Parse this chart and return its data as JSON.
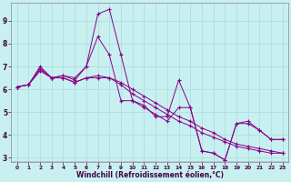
{
  "xlabel": "Windchill (Refroidissement éolien,°C)",
  "bg_color": "#c8f0f0",
  "line_color": "#880088",
  "xlim": [
    -0.5,
    23.5
  ],
  "ylim": [
    2.8,
    9.8
  ],
  "yticks": [
    3,
    4,
    5,
    6,
    7,
    8,
    9
  ],
  "xticks": [
    0,
    1,
    2,
    3,
    4,
    5,
    6,
    7,
    8,
    9,
    10,
    11,
    12,
    13,
    14,
    15,
    16,
    17,
    18,
    19,
    20,
    21,
    22,
    23
  ],
  "grid_color": "#b0dede",
  "series": [
    {
      "x": [
        0,
        1,
        2,
        3,
        4,
        5,
        6,
        7,
        8,
        9,
        10,
        11,
        12,
        13,
        14,
        15,
        16,
        17,
        18,
        19,
        20,
        21,
        22,
        23
      ],
      "y": [
        6.1,
        6.2,
        6.9,
        6.5,
        6.6,
        6.5,
        7.0,
        9.3,
        9.5,
        7.5,
        5.5,
        5.3,
        4.8,
        4.8,
        6.4,
        5.2,
        3.3,
        3.2,
        2.9,
        4.5,
        4.6,
        4.2,
        3.8,
        3.8
      ]
    },
    {
      "x": [
        0,
        1,
        2,
        3,
        4,
        5,
        6,
        7,
        8,
        9,
        10,
        11,
        12,
        13,
        14,
        15,
        16,
        17,
        18,
        19,
        20,
        21,
        22,
        23
      ],
      "y": [
        6.1,
        6.2,
        7.0,
        6.5,
        6.6,
        6.4,
        7.0,
        8.3,
        7.5,
        5.5,
        5.5,
        5.2,
        4.9,
        4.6,
        5.2,
        5.2,
        3.3,
        3.2,
        2.9,
        4.5,
        4.5,
        4.2,
        3.8,
        3.8
      ]
    },
    {
      "x": [
        0,
        1,
        2,
        3,
        4,
        5,
        6,
        7,
        8,
        9,
        10,
        11,
        12,
        13,
        14,
        15,
        16,
        17,
        18,
        19,
        20,
        21,
        22,
        23
      ],
      "y": [
        6.1,
        6.2,
        6.9,
        6.5,
        6.5,
        6.3,
        6.5,
        6.5,
        6.5,
        6.3,
        6.0,
        5.7,
        5.4,
        5.1,
        4.8,
        4.6,
        4.3,
        4.1,
        3.8,
        3.6,
        3.5,
        3.4,
        3.3,
        3.2
      ]
    },
    {
      "x": [
        0,
        1,
        2,
        3,
        4,
        5,
        6,
        7,
        8,
        9,
        10,
        11,
        12,
        13,
        14,
        15,
        16,
        17,
        18,
        19,
        20,
        21,
        22,
        23
      ],
      "y": [
        6.1,
        6.2,
        6.8,
        6.5,
        6.5,
        6.3,
        6.5,
        6.6,
        6.5,
        6.2,
        5.8,
        5.5,
        5.2,
        4.9,
        4.6,
        4.4,
        4.1,
        3.9,
        3.7,
        3.5,
        3.4,
        3.3,
        3.2,
        3.2
      ]
    }
  ]
}
